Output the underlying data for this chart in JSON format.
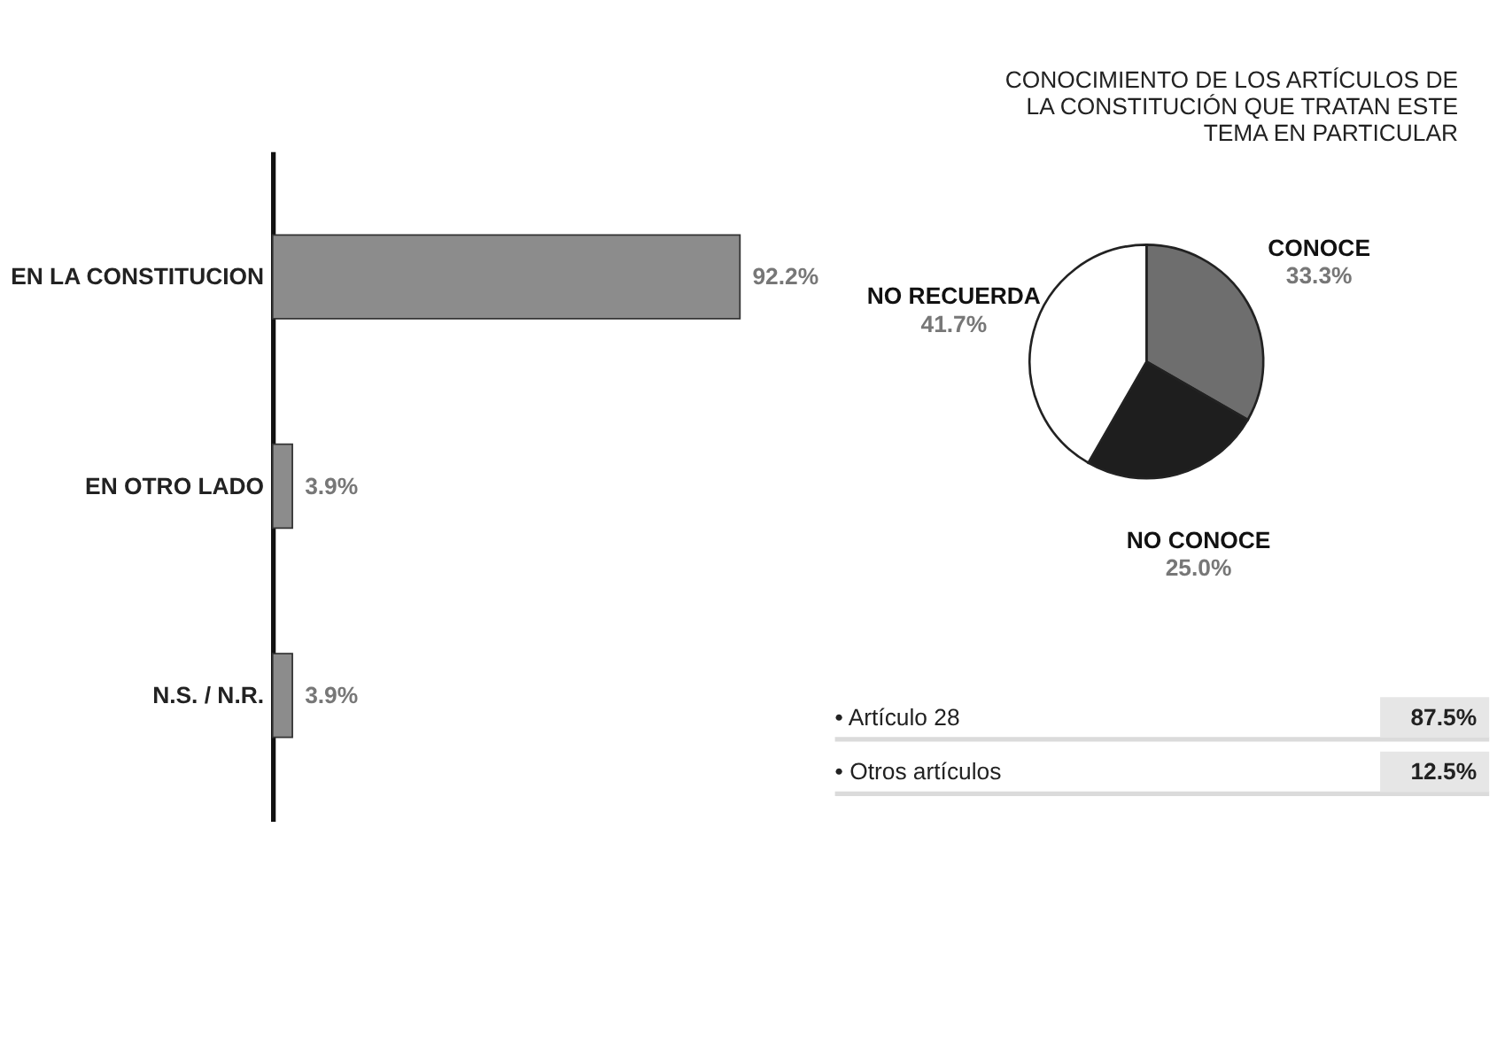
{
  "chart_data": [
    {
      "type": "bar",
      "orientation": "horizontal",
      "categories": [
        "EN LA CONSTITUCION",
        "EN OTRO LADO",
        "N.S. / N.R."
      ],
      "values": [
        92.2,
        3.9,
        3.9
      ],
      "color": "#8c8c8c",
      "value_labels": [
        "92.2%",
        "3.9%",
        "3.9%"
      ]
    },
    {
      "type": "pie",
      "title": "CONOCIMIENTO DE LOS ARTÍCULOS DE LA CONSTITUCIÓN QUE TRATAN ESTE TEMA EN PARTICULAR",
      "categories": [
        "CONOCE",
        "NO CONOCE",
        "NO RECUERDA"
      ],
      "values": [
        33.3,
        25.0,
        41.7
      ],
      "colors": [
        "#6e6e6e",
        "#1e1e1e",
        "#ffffff"
      ],
      "value_labels": [
        "33.3%",
        "25.0%",
        "41.7%"
      ]
    },
    {
      "type": "other",
      "categories": [
        "• Artículo 28",
        "• Otros artículos"
      ],
      "value_labels": [
        "87.5%",
        "12.5%"
      ]
    }
  ]
}
